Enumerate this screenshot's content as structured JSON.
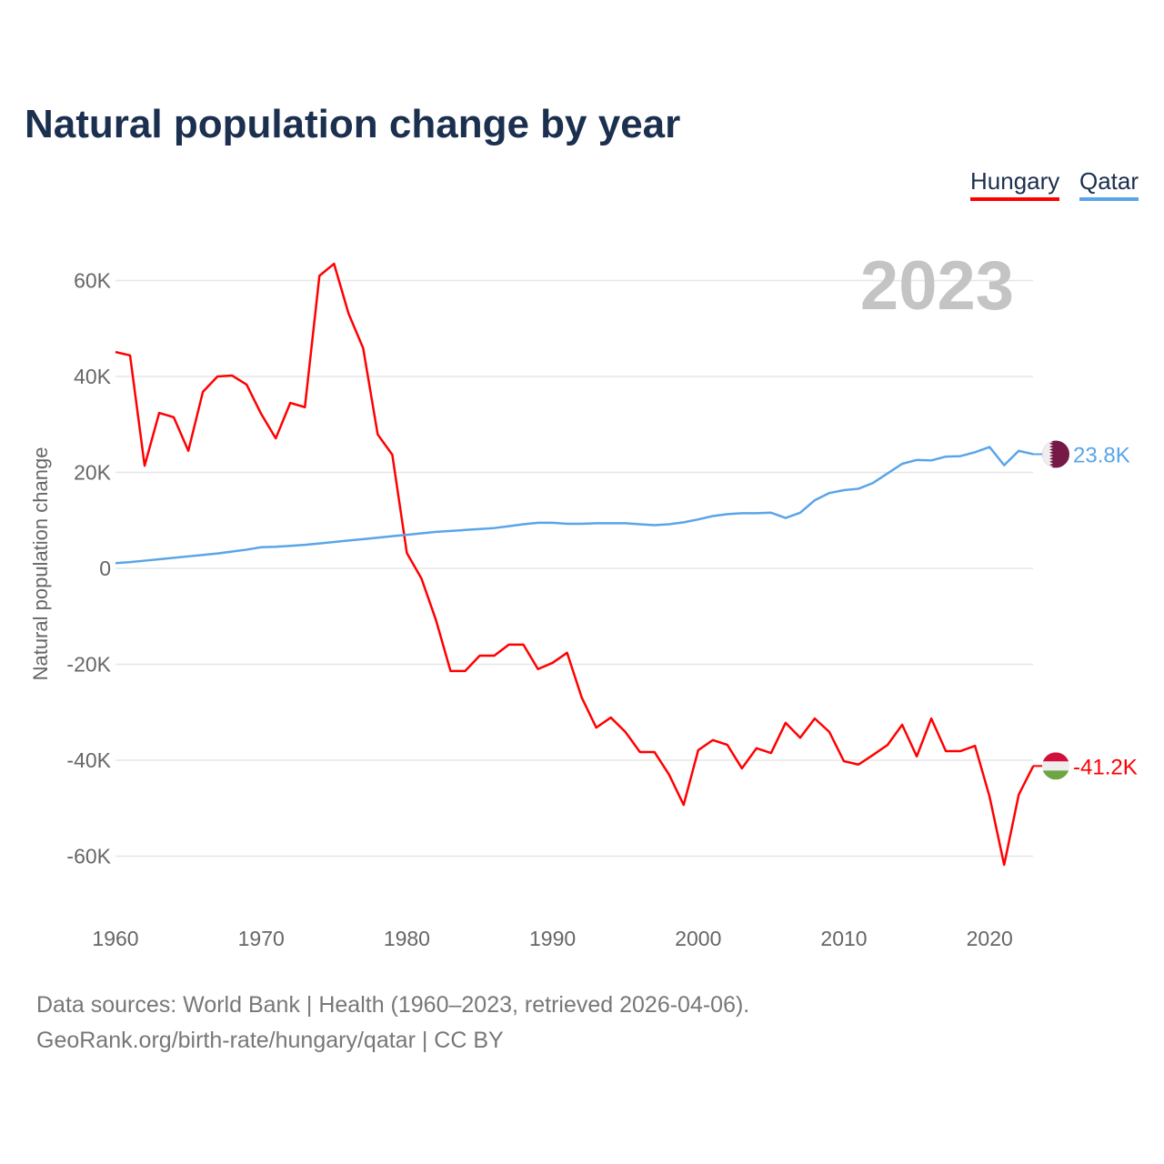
{
  "title": "Natural population change by year",
  "legend": [
    {
      "label": "Hungary",
      "color": "#ff0000"
    },
    {
      "label": "Qatar",
      "color": "#5aa5e8"
    }
  ],
  "footer": {
    "line1": "Data sources: World Bank | Health (1960–2023, retrieved 2026-04-06).",
    "line2": "GeoRank.org/birth-rate/hungary/qatar | CC BY"
  },
  "chart_data": {
    "type": "line",
    "title": "Natural population change by year",
    "xlabel": "",
    "ylabel": "Natural population change",
    "year_label": "2023",
    "xlim": [
      1960,
      2023
    ],
    "ylim": [
      -70000,
      70000
    ],
    "x_ticks": [
      1960,
      1970,
      1980,
      1990,
      2000,
      2010,
      2020
    ],
    "y_ticks": [
      {
        "v": 60000,
        "label": "60K"
      },
      {
        "v": 40000,
        "label": "40K"
      },
      {
        "v": 20000,
        "label": "20K"
      },
      {
        "v": 0,
        "label": "0"
      },
      {
        "v": -20000,
        "label": "-20K"
      },
      {
        "v": -40000,
        "label": "-40K"
      },
      {
        "v": -60000,
        "label": "-60K"
      }
    ],
    "grid": true,
    "legend_position": "top-right",
    "x_start": 1960,
    "series": [
      {
        "name": "Hungary",
        "color": "#ff0000",
        "end_label": "-41.2K",
        "flag": "hungary-flag",
        "values": [
          45.1,
          44.4,
          21.4,
          32.4,
          31.5,
          24.5,
          36.8,
          40.0,
          40.2,
          38.3,
          32.2,
          27.1,
          34.5,
          33.6,
          61.0,
          63.5,
          53.1,
          45.9,
          27.9,
          23.7,
          3.2,
          -2.1,
          -10.8,
          -21.4,
          -21.4,
          -18.2,
          -18.2,
          -15.9,
          -15.9,
          -21.0,
          -19.7,
          -17.6,
          -26.9,
          -33.2,
          -31.1,
          -34.1,
          -38.3,
          -38.3,
          -43.0,
          -49.3,
          -37.9,
          -35.8,
          -36.8,
          -41.7,
          -37.5,
          -38.5,
          -32.2,
          -35.3,
          -31.3,
          -34.1,
          -40.2,
          -40.9,
          -38.9,
          -36.8,
          -32.6,
          -39.2,
          -31.3,
          -38.1,
          -38.1,
          -37.0,
          -47.6,
          -61.8,
          -47.2,
          -41.2
        ]
      },
      {
        "name": "Qatar",
        "color": "#5aa5e8",
        "end_label": "23.8K",
        "flag": "qatar-flag",
        "values": [
          1.1,
          1.3,
          1.6,
          1.9,
          2.2,
          2.5,
          2.8,
          3.1,
          3.5,
          3.9,
          4.4,
          4.5,
          4.7,
          4.9,
          5.2,
          5.5,
          5.8,
          6.1,
          6.4,
          6.7,
          7.0,
          7.3,
          7.6,
          7.8,
          8.0,
          8.2,
          8.4,
          8.8,
          9.2,
          9.5,
          9.5,
          9.3,
          9.3,
          9.4,
          9.4,
          9.4,
          9.2,
          9.0,
          9.2,
          9.6,
          10.2,
          10.9,
          11.3,
          11.5,
          11.5,
          11.6,
          10.5,
          11.6,
          14.2,
          15.7,
          16.3,
          16.6,
          17.8,
          19.8,
          21.8,
          22.6,
          22.5,
          23.3,
          23.4,
          24.2,
          25.3,
          21.5,
          24.5,
          23.8
        ]
      }
    ]
  }
}
